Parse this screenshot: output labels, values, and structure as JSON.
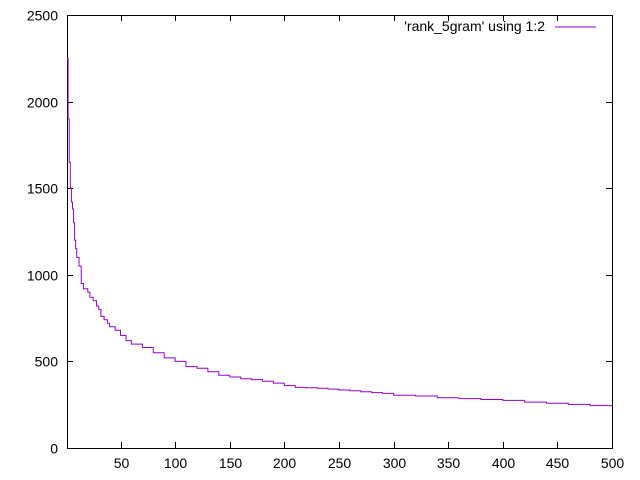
{
  "chart_data": {
    "type": "line",
    "title": "",
    "xlabel": "",
    "ylabel": "",
    "xlim": [
      1,
      500
    ],
    "ylim": [
      0,
      2500
    ],
    "grid": false,
    "legend_position": "top-right",
    "x_ticks": [
      50,
      100,
      150,
      200,
      250,
      300,
      350,
      400,
      450,
      500
    ],
    "y_ticks": [
      0,
      500,
      1000,
      1500,
      2000,
      2500
    ],
    "series": [
      {
        "name": "'rank_5gram' using 1:2",
        "color": "#9400d3",
        "x": [
          1,
          2,
          3,
          4,
          5,
          6,
          7,
          8,
          9,
          10,
          12,
          14,
          16,
          18,
          20,
          22,
          25,
          28,
          30,
          32,
          35,
          38,
          40,
          45,
          50,
          55,
          60,
          70,
          80,
          90,
          100,
          110,
          120,
          130,
          140,
          150,
          160,
          170,
          180,
          190,
          200,
          210,
          220,
          230,
          240,
          250,
          260,
          270,
          280,
          290,
          300,
          320,
          340,
          360,
          380,
          400,
          420,
          440,
          460,
          480,
          500
        ],
        "y": [
          2250,
          1900,
          1650,
          1500,
          1420,
          1380,
          1300,
          1200,
          1150,
          1100,
          1050,
          950,
          920,
          920,
          900,
          870,
          850,
          820,
          800,
          760,
          740,
          720,
          700,
          680,
          650,
          620,
          600,
          580,
          550,
          520,
          500,
          470,
          460,
          440,
          420,
          410,
          400,
          395,
          385,
          375,
          360,
          350,
          348,
          345,
          340,
          335,
          330,
          325,
          320,
          315,
          305,
          300,
          290,
          285,
          280,
          275,
          265,
          258,
          252,
          245,
          240
        ]
      }
    ]
  }
}
